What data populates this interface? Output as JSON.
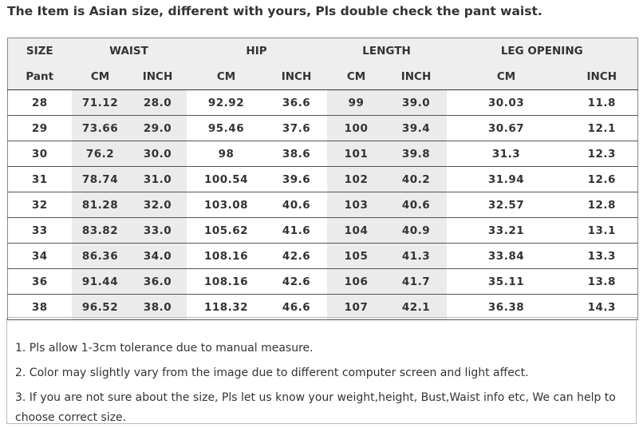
{
  "notice": "The Item is Asian size, different with yours, Pls double check the pant waist.",
  "table": {
    "group_headers": {
      "size": "SIZE",
      "waist": "WAIST",
      "hip": "HIP",
      "length": "LENGTH",
      "leg_opening": "LEG OPENING"
    },
    "sub_headers": [
      "Pant",
      "CM",
      "INCH",
      "CM",
      "INCH",
      "CM",
      "INCH",
      "CM",
      "INCH"
    ],
    "rows": [
      [
        "28",
        "71.12",
        "28.0",
        "92.92",
        "36.6",
        "99",
        "39.0",
        "30.03",
        "11.8"
      ],
      [
        "29",
        "73.66",
        "29.0",
        "95.46",
        "37.6",
        "100",
        "39.4",
        "30.67",
        "12.1"
      ],
      [
        "30",
        "76.2",
        "30.0",
        "98",
        "38.6",
        "101",
        "39.8",
        "31.3",
        "12.3"
      ],
      [
        "31",
        "78.74",
        "31.0",
        "100.54",
        "39.6",
        "102",
        "40.2",
        "31.94",
        "12.6"
      ],
      [
        "32",
        "81.28",
        "32.0",
        "103.08",
        "40.6",
        "103",
        "40.6",
        "32.57",
        "12.8"
      ],
      [
        "33",
        "83.82",
        "33.0",
        "105.62",
        "41.6",
        "104",
        "40.9",
        "33.21",
        "13.1"
      ],
      [
        "34",
        "86.36",
        "34.0",
        "108.16",
        "42.6",
        "105",
        "41.3",
        "33.84",
        "13.3"
      ],
      [
        "36",
        "91.44",
        "36.0",
        "108.16",
        "42.6",
        "106",
        "41.7",
        "35.11",
        "13.8"
      ],
      [
        "38",
        "96.52",
        "38.0",
        "118.32",
        "46.6",
        "107",
        "42.1",
        "36.38",
        "14.3"
      ]
    ]
  },
  "notes": [
    "1.  Pls allow 1-3cm tolerance due to manual measure.",
    "2.  Color may slightly vary from the image due to different computer screen and light affect.",
    "3.  If you are not sure about the size, Pls let us know your weight,height, Bust,Waist info etc, We can help to choose correct size."
  ]
}
